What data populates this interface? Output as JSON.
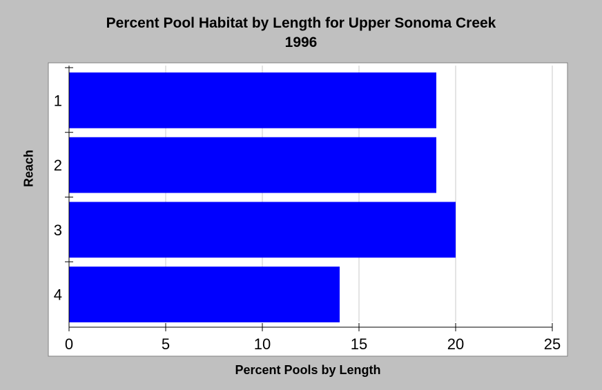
{
  "chart_data": {
    "type": "bar",
    "orientation": "horizontal",
    "title": "Percent Pool Habitat by Length for Upper Sonoma Creek",
    "subtitle": "1996",
    "xlabel": "Percent Pools by Length",
    "ylabel": "Reach",
    "categories": [
      "1",
      "2",
      "3",
      "4"
    ],
    "values": [
      19,
      19,
      20,
      14
    ],
    "xlim": [
      0,
      25
    ],
    "xticks": [
      "0",
      "5",
      "10",
      "15",
      "20",
      "25"
    ],
    "grid": "vertical",
    "bar_color": "#0000ff"
  }
}
